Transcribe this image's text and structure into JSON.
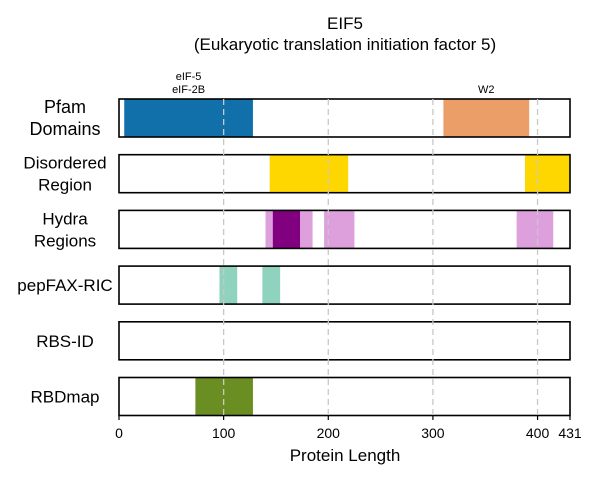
{
  "chart_data": {
    "type": "domain-track",
    "title": "EIF5",
    "subtitle": "(Eukaryotic translation initiation factor 5)",
    "xlabel": "Protein Length",
    "xlim": [
      0,
      431
    ],
    "xticks": [
      0,
      100,
      200,
      300,
      400,
      431
    ],
    "gridlines": [
      100,
      200,
      300,
      400
    ],
    "tracks": [
      {
        "label": [
          "Pfam",
          "Domains"
        ],
        "segments": [
          {
            "start": 5,
            "end": 128,
            "color": "#1170aa",
            "label": [
              "eIF-5",
              "eIF-2B"
            ]
          },
          {
            "start": 310,
            "end": 392,
            "color": "#ec9e68",
            "label": [
              "W2"
            ]
          }
        ]
      },
      {
        "label": [
          "Disordered",
          "Region"
        ],
        "segments": [
          {
            "start": 144,
            "end": 219,
            "color": "#ffd700"
          },
          {
            "start": 388,
            "end": 431,
            "color": "#ffd700"
          }
        ]
      },
      {
        "label": [
          "Hydra",
          "Regions"
        ],
        "segments": [
          {
            "start": 140,
            "end": 185,
            "color": "#dda0dd"
          },
          {
            "start": 196,
            "end": 225,
            "color": "#dda0dd"
          },
          {
            "start": 380,
            "end": 415,
            "color": "#dda0dd"
          },
          {
            "start": 147,
            "end": 173,
            "color": "#800080"
          }
        ]
      },
      {
        "label": [
          "pepFAX-RIC"
        ],
        "segments": [
          {
            "start": 96,
            "end": 113,
            "color": "#8fd3bf"
          },
          {
            "start": 137,
            "end": 154,
            "color": "#8fd3bf"
          }
        ]
      },
      {
        "label": [
          "RBS-ID"
        ],
        "segments": []
      },
      {
        "label": [
          "RBDmap"
        ],
        "segments": [
          {
            "start": 73,
            "end": 128,
            "color": "#6b8e23"
          }
        ]
      }
    ]
  }
}
